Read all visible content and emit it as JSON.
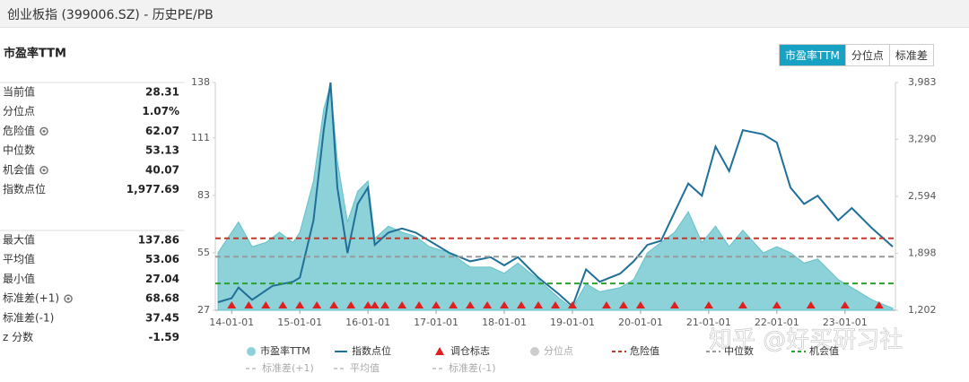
{
  "header": {
    "title": "创业板指 (399006.SZ) - 历史PE/PB"
  },
  "buttons": [
    "市盈率TTM",
    "分位点",
    "标准差"
  ],
  "panel": {
    "title": "市盈率TTM",
    "stats": [
      {
        "label": "当前值",
        "value": "28.31"
      },
      {
        "label": "分位点",
        "value": "1.07%"
      },
      {
        "label": "危险值",
        "value": "62.07"
      },
      {
        "label": "中位数",
        "value": "53.13"
      },
      {
        "label": "机会值",
        "value": "40.07"
      },
      {
        "label": "指数点位",
        "value": "1,977.69"
      }
    ],
    "stats2": [
      {
        "label": "最大值",
        "value": "137.86"
      },
      {
        "label": "平均值",
        "value": "53.06"
      },
      {
        "label": "最小值",
        "value": "27.04"
      },
      {
        "label": "标准差(+1)",
        "value": "68.68"
      },
      {
        "label": "标准差(-1)",
        "value": "37.45"
      },
      {
        "label": "z 分数",
        "value": "-1.59"
      }
    ]
  },
  "chart_data": {
    "type": "area-line",
    "xlim": [
      2013.76,
      2023.74
    ],
    "xticks": [
      {
        "value": 2014,
        "label": "14-01-01"
      },
      {
        "value": 2015,
        "label": "15-01-01"
      },
      {
        "value": 2016,
        "label": "16-01-01"
      },
      {
        "value": 2017,
        "label": "17-01-01"
      },
      {
        "value": 2018,
        "label": "18-01-01"
      },
      {
        "value": 2019,
        "label": "19-01-01"
      },
      {
        "value": 2020,
        "label": "20-01-01"
      },
      {
        "value": 2021,
        "label": "21-01-01"
      },
      {
        "value": 2022,
        "label": "22-01-01"
      },
      {
        "value": 2023,
        "label": "23-01-01"
      }
    ],
    "ylim": [
      27,
      138
    ],
    "yticks": [
      27,
      55,
      83,
      111,
      138
    ],
    "y2lim": [
      1202,
      3983
    ],
    "y2ticks": [
      {
        "value": 1202,
        "label": "1,202"
      },
      {
        "value": 1898,
        "label": "1,898"
      },
      {
        "value": 2594,
        "label": "2,594"
      },
      {
        "value": 3290,
        "label": "3,290"
      },
      {
        "value": 3983,
        "label": "3,983"
      }
    ],
    "series": [
      {
        "name": "市盈率TTM",
        "color": "#8cd2d8",
        "x": [
          2013.8,
          2014.0,
          2014.1,
          2014.3,
          2014.5,
          2014.7,
          2014.9,
          2015.0,
          2015.2,
          2015.35,
          2015.45,
          2015.55,
          2015.7,
          2015.85,
          2016.0,
          2016.1,
          2016.3,
          2016.5,
          2016.7,
          2016.9,
          2017.2,
          2017.5,
          2017.8,
          2018.0,
          2018.2,
          2018.5,
          2018.8,
          2019.0,
          2019.2,
          2019.4,
          2019.7,
          2019.9,
          2020.1,
          2020.3,
          2020.5,
          2020.7,
          2020.9,
          2021.1,
          2021.3,
          2021.5,
          2021.8,
          2022.0,
          2022.2,
          2022.4,
          2022.6,
          2022.9,
          2023.1,
          2023.4,
          2023.7
        ],
        "values": [
          55,
          65,
          70,
          58,
          60,
          65,
          60,
          65,
          90,
          125,
          137,
          100,
          70,
          85,
          90,
          62,
          68,
          65,
          63,
          58,
          55,
          48,
          48,
          45,
          50,
          42,
          33,
          28,
          40,
          36,
          38,
          42,
          55,
          60,
          65,
          75,
          60,
          68,
          58,
          66,
          55,
          58,
          55,
          50,
          52,
          42,
          38,
          32,
          28
        ]
      },
      {
        "name": "指数点位",
        "color": "#1f6f99",
        "axis": "y2",
        "x": [
          2013.8,
          2014.0,
          2014.1,
          2014.3,
          2014.6,
          2014.9,
          2015.0,
          2015.2,
          2015.35,
          2015.45,
          2015.55,
          2015.7,
          2015.85,
          2016.0,
          2016.1,
          2016.3,
          2016.5,
          2016.7,
          2016.9,
          2017.2,
          2017.5,
          2017.8,
          2018.0,
          2018.2,
          2018.5,
          2018.8,
          2019.0,
          2019.2,
          2019.4,
          2019.7,
          2019.9,
          2020.1,
          2020.3,
          2020.5,
          2020.7,
          2020.9,
          2021.1,
          2021.3,
          2021.5,
          2021.8,
          2022.0,
          2022.2,
          2022.4,
          2022.6,
          2022.9,
          2023.1,
          2023.4,
          2023.7
        ],
        "values": [
          1300,
          1350,
          1480,
          1330,
          1500,
          1550,
          1600,
          2300,
          3400,
          3983,
          2700,
          1900,
          2500,
          2700,
          2000,
          2150,
          2200,
          2150,
          2050,
          1900,
          1800,
          1850,
          1750,
          1850,
          1600,
          1400,
          1250,
          1700,
          1550,
          1650,
          1800,
          2000,
          2050,
          2400,
          2750,
          2600,
          3200,
          2900,
          3400,
          3350,
          3250,
          2700,
          2500,
          2600,
          2300,
          2450,
          2200,
          1978
        ]
      }
    ],
    "markers": {
      "name": "调仓标志",
      "color": "#e02020",
      "x": [
        2014.0,
        2014.25,
        2014.5,
        2014.75,
        2015.0,
        2015.25,
        2015.5,
        2015.75,
        2016.0,
        2016.1,
        2016.25,
        2016.5,
        2016.75,
        2017.0,
        2017.25,
        2017.5,
        2017.75,
        2018.0,
        2018.25,
        2018.5,
        2018.75,
        2019.0,
        2019.5,
        2019.75,
        2020.0,
        2020.5,
        2021.0,
        2021.5,
        2022.0,
        2022.5,
        2023.0,
        2023.5
      ]
    },
    "reference_lines": [
      {
        "name": "危险值",
        "value": 62.07,
        "color": "#c0392b"
      },
      {
        "name": "中位数",
        "value": 53.13,
        "color": "#999999"
      },
      {
        "name": "机会值",
        "value": 40.07,
        "color": "#2ca02c"
      }
    ],
    "legend_inactive": [
      "分位点",
      "标准差(+1)",
      "平均值",
      "标准差(-1)"
    ],
    "watermark": "知乎 @好买研习社"
  }
}
